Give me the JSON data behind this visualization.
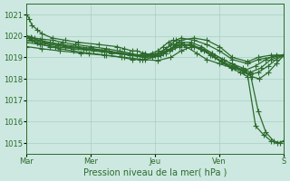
{
  "xlabel": "Pression niveau de la mer( hPa )",
  "background_color": "#cce8e0",
  "plot_bg_color": "#cce8e0",
  "line_color": "#2d6a2d",
  "grid_color": "#a0c8bc",
  "ylim": [
    1014.5,
    1021.5
  ],
  "yticks": [
    1015,
    1016,
    1017,
    1018,
    1019,
    1020,
    1021
  ],
  "xtick_labels": [
    "Mar",
    "Mer",
    "Jeu",
    "Ven",
    "S"
  ],
  "xtick_positions": [
    0,
    0.25,
    0.5,
    0.75,
    1.0
  ],
  "line_width": 0.9,
  "marker": "+",
  "marker_size": 4.5,
  "lines": [
    {
      "x": [
        0.0,
        0.01,
        0.02,
        0.04,
        0.06,
        0.1,
        0.15,
        0.2,
        0.28,
        0.35,
        0.38,
        0.41,
        0.43,
        0.45,
        0.46,
        0.48,
        0.5,
        0.52,
        0.54,
        0.56,
        0.58,
        0.6,
        0.65,
        0.7,
        0.75,
        0.8,
        0.86,
        0.9,
        0.95,
        1.0
      ],
      "y": [
        1021.0,
        1020.8,
        1020.5,
        1020.3,
        1020.1,
        1019.9,
        1019.8,
        1019.7,
        1019.6,
        1019.5,
        1019.4,
        1019.3,
        1019.3,
        1019.2,
        1019.2,
        1019.1,
        1019.1,
        1019.1,
        1019.2,
        1019.4,
        1019.6,
        1019.8,
        1019.9,
        1019.8,
        1019.5,
        1019.0,
        1018.8,
        1019.0,
        1019.1,
        1019.1
      ]
    },
    {
      "x": [
        0.0,
        0.01,
        0.02,
        0.04,
        0.06,
        0.09,
        0.13,
        0.18,
        0.24,
        0.31,
        0.37,
        0.41,
        0.44,
        0.46,
        0.49,
        0.52,
        0.54,
        0.56,
        0.58,
        0.6,
        0.65,
        0.7,
        0.75,
        0.8,
        0.86,
        0.9,
        0.95,
        1.0
      ],
      "y": [
        1020.0,
        1019.9,
        1019.8,
        1019.7,
        1019.6,
        1019.5,
        1019.4,
        1019.3,
        1019.2,
        1019.1,
        1019.0,
        1018.9,
        1018.9,
        1018.9,
        1019.0,
        1019.2,
        1019.4,
        1019.6,
        1019.8,
        1019.9,
        1019.8,
        1019.6,
        1019.3,
        1018.9,
        1018.7,
        1018.9,
        1019.0,
        1019.1
      ]
    },
    {
      "x": [
        0.0,
        0.015,
        0.03,
        0.06,
        0.1,
        0.14,
        0.19,
        0.25,
        0.31,
        0.36,
        0.4,
        0.43,
        0.46,
        0.49,
        0.51,
        0.53,
        0.55,
        0.57,
        0.59,
        0.62,
        0.66,
        0.7,
        0.75,
        0.8,
        0.85,
        0.89,
        0.93,
        0.97,
        1.0
      ],
      "y": [
        1020.0,
        1019.95,
        1019.9,
        1019.85,
        1019.8,
        1019.7,
        1019.6,
        1019.5,
        1019.4,
        1019.3,
        1019.2,
        1019.1,
        1019.1,
        1019.2,
        1019.3,
        1019.5,
        1019.7,
        1019.8,
        1019.7,
        1019.5,
        1019.2,
        1018.9,
        1018.7,
        1018.5,
        1018.4,
        1018.6,
        1018.9,
        1019.1,
        1019.1
      ]
    },
    {
      "x": [
        0.0,
        0.02,
        0.05,
        0.09,
        0.14,
        0.2,
        0.26,
        0.32,
        0.37,
        0.41,
        0.45,
        0.48,
        0.51,
        0.54,
        0.57,
        0.6,
        0.64,
        0.68,
        0.72,
        0.76,
        0.8,
        0.84,
        0.87,
        0.91,
        0.95,
        1.0
      ],
      "y": [
        1020.0,
        1019.9,
        1019.8,
        1019.7,
        1019.6,
        1019.5,
        1019.4,
        1019.3,
        1019.2,
        1019.15,
        1019.1,
        1019.1,
        1019.2,
        1019.4,
        1019.6,
        1019.7,
        1019.7,
        1019.5,
        1019.2,
        1018.9,
        1018.7,
        1018.5,
        1018.3,
        1018.5,
        1018.9,
        1019.1
      ]
    },
    {
      "x": [
        0.0,
        0.03,
        0.07,
        0.12,
        0.17,
        0.23,
        0.3,
        0.36,
        0.41,
        0.45,
        0.49,
        0.53,
        0.565,
        0.6,
        0.64,
        0.68,
        0.72,
        0.76,
        0.8,
        0.84,
        0.87,
        0.9,
        0.94,
        0.97,
        1.0
      ],
      "y": [
        1019.9,
        1019.8,
        1019.7,
        1019.6,
        1019.5,
        1019.4,
        1019.3,
        1019.2,
        1019.1,
        1019.05,
        1019.1,
        1019.2,
        1019.4,
        1019.6,
        1019.6,
        1019.4,
        1019.1,
        1018.8,
        1018.6,
        1018.4,
        1018.2,
        1018.3,
        1018.6,
        1018.9,
        1019.1
      ]
    },
    {
      "x": [
        0.0,
        0.04,
        0.09,
        0.15,
        0.22,
        0.29,
        0.36,
        0.41,
        0.455,
        0.5,
        0.54,
        0.575,
        0.61,
        0.65,
        0.69,
        0.73,
        0.77,
        0.81,
        0.845,
        0.875,
        0.905,
        0.94,
        0.97,
        1.0
      ],
      "y": [
        1019.8,
        1019.7,
        1019.6,
        1019.5,
        1019.4,
        1019.3,
        1019.2,
        1019.1,
        1019.0,
        1019.1,
        1019.3,
        1019.5,
        1019.6,
        1019.5,
        1019.3,
        1019.0,
        1018.7,
        1018.5,
        1018.3,
        1018.1,
        1018.0,
        1018.3,
        1018.7,
        1019.1
      ]
    },
    {
      "x": [
        0.0,
        0.05,
        0.11,
        0.18,
        0.26,
        0.33,
        0.4,
        0.46,
        0.51,
        0.555,
        0.595,
        0.635,
        0.675,
        0.715,
        0.755,
        0.795,
        0.83,
        0.86,
        0.89,
        0.92,
        0.95,
        0.975,
        1.0
      ],
      "y": [
        1019.7,
        1019.6,
        1019.5,
        1019.4,
        1019.3,
        1019.2,
        1019.1,
        1019.0,
        1019.05,
        1019.3,
        1019.5,
        1019.6,
        1019.4,
        1019.1,
        1018.8,
        1018.5,
        1018.3,
        1018.1,
        1015.8,
        1015.4,
        1015.1,
        1015.0,
        1015.1
      ]
    },
    {
      "x": [
        0.0,
        0.06,
        0.13,
        0.21,
        0.3,
        0.38,
        0.45,
        0.51,
        0.56,
        0.6,
        0.64,
        0.68,
        0.72,
        0.765,
        0.81,
        0.84,
        0.87,
        0.9,
        0.93,
        0.96,
        0.985,
        1.0
      ],
      "y": [
        1019.5,
        1019.4,
        1019.3,
        1019.2,
        1019.1,
        1019.0,
        1018.9,
        1018.85,
        1019.0,
        1019.3,
        1019.5,
        1019.4,
        1019.2,
        1018.9,
        1018.6,
        1018.4,
        1018.2,
        1016.5,
        1015.5,
        1015.1,
        1015.0,
        1015.1
      ]
    }
  ]
}
